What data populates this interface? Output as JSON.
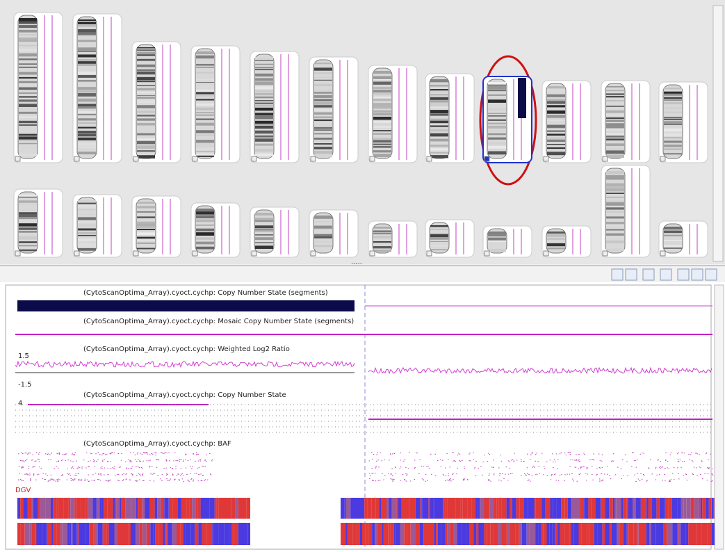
{
  "splitter": ".....",
  "tracks": [
    {
      "title": "(CytoScanOptima_Array).cyoct.cychp: Copy Number State (segments)"
    },
    {
      "title": "(CytoScanOptima_Array).cyoct.cychp: Mosaic Copy Number State (segments)"
    },
    {
      "title": "(CytoScanOptima_Array).cyoct.cychp: Weighted Log2 Ratio",
      "axis_labels": [
        "1.5",
        "-1.5"
      ]
    },
    {
      "title": "(CytoScanOptima_Array).cyoct.cychp: Copy Number State",
      "axis_labels": [
        "4"
      ]
    },
    {
      "title": "(CytoScanOptima_Array).cyoct.cychp: BAF"
    }
  ],
  "dgv_label": "DGV"
}
